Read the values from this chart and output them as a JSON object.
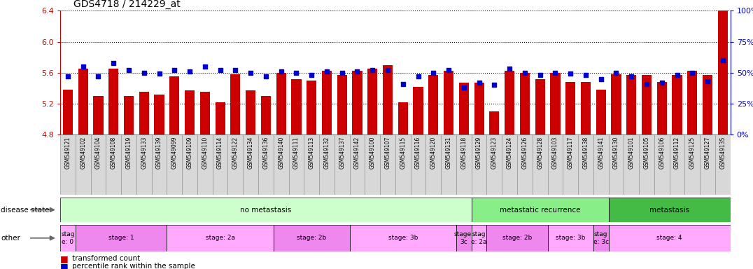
{
  "title": "GDS4718 / 214229_at",
  "samples": [
    "GSM549121",
    "GSM549102",
    "GSM549104",
    "GSM549108",
    "GSM549119",
    "GSM549133",
    "GSM549139",
    "GSM549099",
    "GSM549109",
    "GSM549110",
    "GSM549114",
    "GSM549122",
    "GSM549134",
    "GSM549136",
    "GSM549140",
    "GSM549111",
    "GSM549113",
    "GSM549132",
    "GSM549137",
    "GSM549142",
    "GSM549100",
    "GSM549107",
    "GSM549115",
    "GSM549116",
    "GSM549120",
    "GSM549131",
    "GSM549118",
    "GSM549129",
    "GSM549123",
    "GSM549124",
    "GSM549126",
    "GSM549128",
    "GSM549103",
    "GSM549117",
    "GSM549138",
    "GSM549141",
    "GSM549130",
    "GSM549101",
    "GSM549105",
    "GSM549106",
    "GSM549112",
    "GSM549125",
    "GSM549127",
    "GSM549135"
  ],
  "bar_values": [
    5.38,
    5.65,
    5.3,
    5.65,
    5.3,
    5.35,
    5.32,
    5.55,
    5.37,
    5.35,
    5.22,
    5.58,
    5.37,
    5.3,
    5.6,
    5.52,
    5.5,
    5.62,
    5.57,
    5.62,
    5.65,
    5.7,
    5.22,
    5.42,
    5.57,
    5.62,
    5.47,
    5.47,
    5.1,
    5.62,
    5.6,
    5.52,
    5.6,
    5.48,
    5.48,
    5.38,
    5.58,
    5.57,
    5.57,
    5.48,
    5.57,
    5.62,
    5.57,
    6.4
  ],
  "percentile_values": [
    47,
    55,
    47,
    58,
    52,
    50,
    49,
    52,
    51,
    55,
    52,
    52,
    50,
    47,
    51,
    50,
    48,
    51,
    50,
    51,
    52,
    52,
    41,
    47,
    50,
    52,
    38,
    42,
    40,
    53,
    50,
    48,
    50,
    49,
    48,
    45,
    50,
    47,
    41,
    42,
    48,
    50,
    43,
    60
  ],
  "ylim_left": [
    4.8,
    6.4
  ],
  "ylim_right": [
    0,
    100
  ],
  "yticks_left": [
    4.8,
    5.2,
    5.6,
    6.0,
    6.4
  ],
  "yticks_right": [
    0,
    25,
    50,
    75,
    100
  ],
  "bar_color": "#cc0000",
  "dot_color": "#0000cc",
  "disease_state_groups": [
    {
      "label": "no metastasis",
      "start": 0,
      "end": 27,
      "color": "#ccffcc"
    },
    {
      "label": "metastatic recurrence",
      "start": 27,
      "end": 36,
      "color": "#88ee88"
    },
    {
      "label": "metastasis",
      "start": 36,
      "end": 44,
      "color": "#44bb44"
    }
  ],
  "stage_groups": [
    {
      "label": "stag\ne: 0",
      "start": 0,
      "end": 1,
      "color": "#ffaaff"
    },
    {
      "label": "stage: 1",
      "start": 1,
      "end": 7,
      "color": "#ee88ee"
    },
    {
      "label": "stage: 2a",
      "start": 7,
      "end": 14,
      "color": "#ffaaff"
    },
    {
      "label": "stage: 2b",
      "start": 14,
      "end": 19,
      "color": "#ee88ee"
    },
    {
      "label": "stage: 3b",
      "start": 19,
      "end": 26,
      "color": "#ffaaff"
    },
    {
      "label": "stage:\n3c",
      "start": 26,
      "end": 27,
      "color": "#ee88ee"
    },
    {
      "label": "stag\ne: 2a",
      "start": 27,
      "end": 28,
      "color": "#ffaaff"
    },
    {
      "label": "stage: 2b",
      "start": 28,
      "end": 32,
      "color": "#ee88ee"
    },
    {
      "label": "stage: 3b",
      "start": 32,
      "end": 35,
      "color": "#ffaaff"
    },
    {
      "label": "stag\ne: 3c",
      "start": 35,
      "end": 36,
      "color": "#ee88ee"
    },
    {
      "label": "stage: 4",
      "start": 36,
      "end": 44,
      "color": "#ffaaff"
    }
  ],
  "legend_items": [
    {
      "label": "transformed count",
      "color": "#cc0000"
    },
    {
      "label": "percentile rank within the sample",
      "color": "#0000cc"
    }
  ]
}
